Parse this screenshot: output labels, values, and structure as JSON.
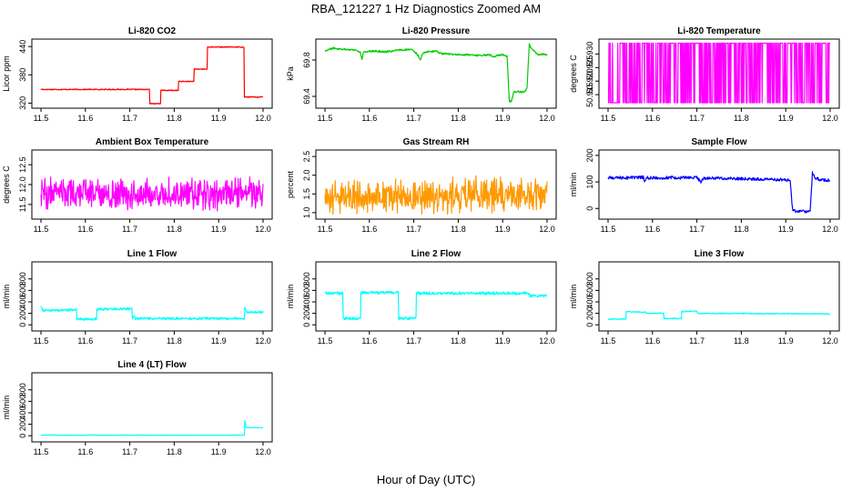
{
  "figure": {
    "title": "RBA_121227  1 Hz Diagnostics Zoomed AM",
    "xlabel": "Hour of Day (UTC)"
  },
  "chart_data": [
    {
      "id": "co2",
      "type": "line",
      "title": "Li-820 CO2",
      "ylabel": "Licor ppm",
      "color": "#ff0000",
      "xlim": [
        11.5,
        12.0
      ],
      "ylim": [
        315,
        450
      ],
      "yticks": [
        320,
        380,
        440
      ],
      "xticks": [
        11.5,
        11.6,
        11.7,
        11.8,
        11.9,
        12.0
      ],
      "noise": 1,
      "segments": [
        [
          11.5,
          11.745,
          349
        ],
        [
          11.745,
          11.77,
          319
        ],
        [
          11.77,
          11.81,
          347
        ],
        [
          11.81,
          11.845,
          366
        ],
        [
          11.845,
          11.875,
          392
        ],
        [
          11.875,
          11.958,
          439
        ],
        [
          11.958,
          12.0,
          333
        ]
      ]
    },
    {
      "id": "pressure",
      "type": "line",
      "title": "Li-820 Pressure",
      "ylabel": "kPa",
      "color": "#00cc00",
      "xlim": [
        11.5,
        12.0
      ],
      "ylim": [
        69.3,
        70.0
      ],
      "yticks": [
        69.4,
        69.8
      ],
      "ytick_labels": [
        "69.4",
        "69.8"
      ],
      "xticks": [
        11.5,
        11.6,
        11.7,
        11.8,
        11.9,
        12.0
      ],
      "noise": 0.01,
      "points": [
        [
          11.5,
          69.9
        ],
        [
          11.51,
          69.92
        ],
        [
          11.52,
          69.93
        ],
        [
          11.54,
          69.92
        ],
        [
          11.57,
          69.91
        ],
        [
          11.58,
          69.88
        ],
        [
          11.583,
          69.8
        ],
        [
          11.586,
          69.88
        ],
        [
          11.6,
          69.9
        ],
        [
          11.64,
          69.89
        ],
        [
          11.67,
          69.91
        ],
        [
          11.69,
          69.92
        ],
        [
          11.7,
          69.9
        ],
        [
          11.71,
          69.85
        ],
        [
          11.715,
          69.8
        ],
        [
          11.72,
          69.88
        ],
        [
          11.75,
          69.9
        ],
        [
          11.76,
          69.87
        ],
        [
          11.8,
          69.86
        ],
        [
          11.85,
          69.85
        ],
        [
          11.87,
          69.86
        ],
        [
          11.88,
          69.84
        ],
        [
          11.9,
          69.86
        ],
        [
          11.91,
          69.84
        ],
        [
          11.915,
          69.35
        ],
        [
          11.92,
          69.34
        ],
        [
          11.925,
          69.45
        ],
        [
          11.95,
          69.45
        ],
        [
          11.955,
          69.5
        ],
        [
          11.96,
          69.98
        ],
        [
          11.965,
          69.92
        ],
        [
          11.98,
          69.86
        ],
        [
          12.0,
          69.86
        ]
      ]
    },
    {
      "id": "temperature",
      "type": "line",
      "title": "Li-820 Temperature",
      "ylabel": "degrees C",
      "color": "#ff00ff",
      "xlim": [
        11.5,
        12.0
      ],
      "ylim": [
        50.911,
        50.9345
      ],
      "yticks": [
        50.915,
        50.92,
        50.925,
        50.93
      ],
      "ytick_labels": [
        "50.915",
        "50.920",
        "50.925",
        "50.930"
      ],
      "xticks": [
        11.5,
        11.6,
        11.7,
        11.8,
        11.9,
        12.0
      ],
      "binary": [
        50.912,
        50.934
      ]
    },
    {
      "id": "box_temp",
      "type": "line",
      "title": "Ambient Box Temperature",
      "ylabel": "degrees C",
      "color": "#ff00ff",
      "xlim": [
        11.5,
        12.0
      ],
      "ylim": [
        11.2,
        12.8
      ],
      "yticks": [
        11.5,
        12.0,
        12.5
      ],
      "ytick_labels": [
        "11.5",
        "12.0",
        "12.5"
      ],
      "xticks": [
        11.5,
        11.6,
        11.7,
        11.8,
        11.9,
        12.0
      ],
      "noisy_base": 11.78,
      "noisy_amp": 0.45
    },
    {
      "id": "rh",
      "type": "line",
      "title": "Gas Stream RH",
      "ylabel": "percent",
      "color": "#ff9900",
      "xlim": [
        11.5,
        12.0
      ],
      "ylim": [
        0.9,
        2.6
      ],
      "yticks": [
        1.0,
        1.5,
        2.0,
        2.5
      ],
      "ytick_labels": [
        "1.0",
        "1.5",
        "2.0",
        "2.5"
      ],
      "xticks": [
        11.5,
        11.6,
        11.7,
        11.8,
        11.9,
        12.0
      ],
      "noisy_base": 1.45,
      "noisy_amp": 0.55
    },
    {
      "id": "sample_flow",
      "type": "line",
      "title": "Sample Flow",
      "ylabel": "ml/min",
      "color": "#0000ff",
      "xlim": [
        11.5,
        12.0
      ],
      "ylim": [
        -30,
        210
      ],
      "yticks": [
        0,
        100,
        200
      ],
      "xticks": [
        11.5,
        11.6,
        11.7,
        11.8,
        11.9,
        12.0
      ],
      "noise": 6,
      "points": [
        [
          11.5,
          115
        ],
        [
          11.58,
          117
        ],
        [
          11.582,
          95
        ],
        [
          11.585,
          115
        ],
        [
          11.7,
          116
        ],
        [
          11.71,
          100
        ],
        [
          11.715,
          115
        ],
        [
          11.8,
          112
        ],
        [
          11.9,
          108
        ],
        [
          11.91,
          107
        ],
        [
          11.915,
          0
        ],
        [
          11.92,
          -10
        ],
        [
          11.955,
          -10
        ],
        [
          11.96,
          135
        ],
        [
          11.965,
          115
        ],
        [
          11.98,
          108
        ],
        [
          12.0,
          105
        ]
      ]
    },
    {
      "id": "line1",
      "type": "line",
      "title": "Line 1 Flow",
      "ylabel": "ml/min",
      "color": "#00ffff",
      "xlim": [
        11.5,
        12.0
      ],
      "ylim": [
        -60,
        1050
      ],
      "yticks": [
        0,
        200,
        400,
        600,
        800
      ],
      "xticks": [
        11.5,
        11.6,
        11.7,
        11.8,
        11.9,
        12.0
      ],
      "noise": 20,
      "points": [
        [
          11.5,
          320
        ],
        [
          11.505,
          250
        ],
        [
          11.58,
          260
        ],
        [
          11.581,
          100
        ],
        [
          11.625,
          100
        ],
        [
          11.626,
          270
        ],
        [
          11.705,
          280
        ],
        [
          11.706,
          100
        ],
        [
          11.71,
          160
        ],
        [
          11.712,
          110
        ],
        [
          11.958,
          110
        ],
        [
          11.959,
          300
        ],
        [
          11.963,
          220
        ],
        [
          12.0,
          220
        ]
      ]
    },
    {
      "id": "line2",
      "type": "line",
      "title": "Line 2 Flow",
      "ylabel": "ml/min",
      "color": "#00ffff",
      "xlim": [
        11.5,
        12.0
      ],
      "ylim": [
        -60,
        1050
      ],
      "yticks": [
        0,
        200,
        400,
        600,
        800
      ],
      "xticks": [
        11.5,
        11.6,
        11.7,
        11.8,
        11.9,
        12.0
      ],
      "noise": 25,
      "points": [
        [
          11.5,
          550
        ],
        [
          11.54,
          550
        ],
        [
          11.541,
          110
        ],
        [
          11.58,
          110
        ],
        [
          11.581,
          560
        ],
        [
          11.665,
          560
        ],
        [
          11.666,
          110
        ],
        [
          11.705,
          110
        ],
        [
          11.706,
          550
        ],
        [
          11.96,
          550
        ],
        [
          11.961,
          500
        ],
        [
          12.0,
          510
        ]
      ]
    },
    {
      "id": "line3",
      "type": "line",
      "title": "Line 3 Flow",
      "ylabel": "ml/min",
      "color": "#00ffff",
      "xlim": [
        11.5,
        12.0
      ],
      "ylim": [
        -60,
        1050
      ],
      "yticks": [
        0,
        200,
        400,
        600,
        800
      ],
      "xticks": [
        11.5,
        11.6,
        11.7,
        11.8,
        11.9,
        12.0
      ],
      "noise": 8,
      "points": [
        [
          11.5,
          100
        ],
        [
          11.54,
          100
        ],
        [
          11.541,
          230
        ],
        [
          11.585,
          220
        ],
        [
          11.586,
          200
        ],
        [
          11.625,
          200
        ],
        [
          11.626,
          110
        ],
        [
          11.665,
          110
        ],
        [
          11.666,
          230
        ],
        [
          11.7,
          240
        ],
        [
          11.701,
          200
        ],
        [
          12.0,
          190
        ]
      ]
    },
    {
      "id": "line4",
      "type": "line",
      "title": "Line 4 (LT) Flow",
      "ylabel": "ml/min",
      "color": "#00ffff",
      "xlim": [
        11.5,
        12.0
      ],
      "ylim": [
        -60,
        1050
      ],
      "yticks": [
        0,
        200,
        400,
        600,
        800
      ],
      "xticks": [
        11.5,
        11.6,
        11.7,
        11.8,
        11.9,
        12.0
      ],
      "noise": 4,
      "points": [
        [
          11.5,
          10
        ],
        [
          11.958,
          10
        ],
        [
          11.959,
          260
        ],
        [
          11.962,
          140
        ],
        [
          12.0,
          140
        ]
      ]
    }
  ]
}
